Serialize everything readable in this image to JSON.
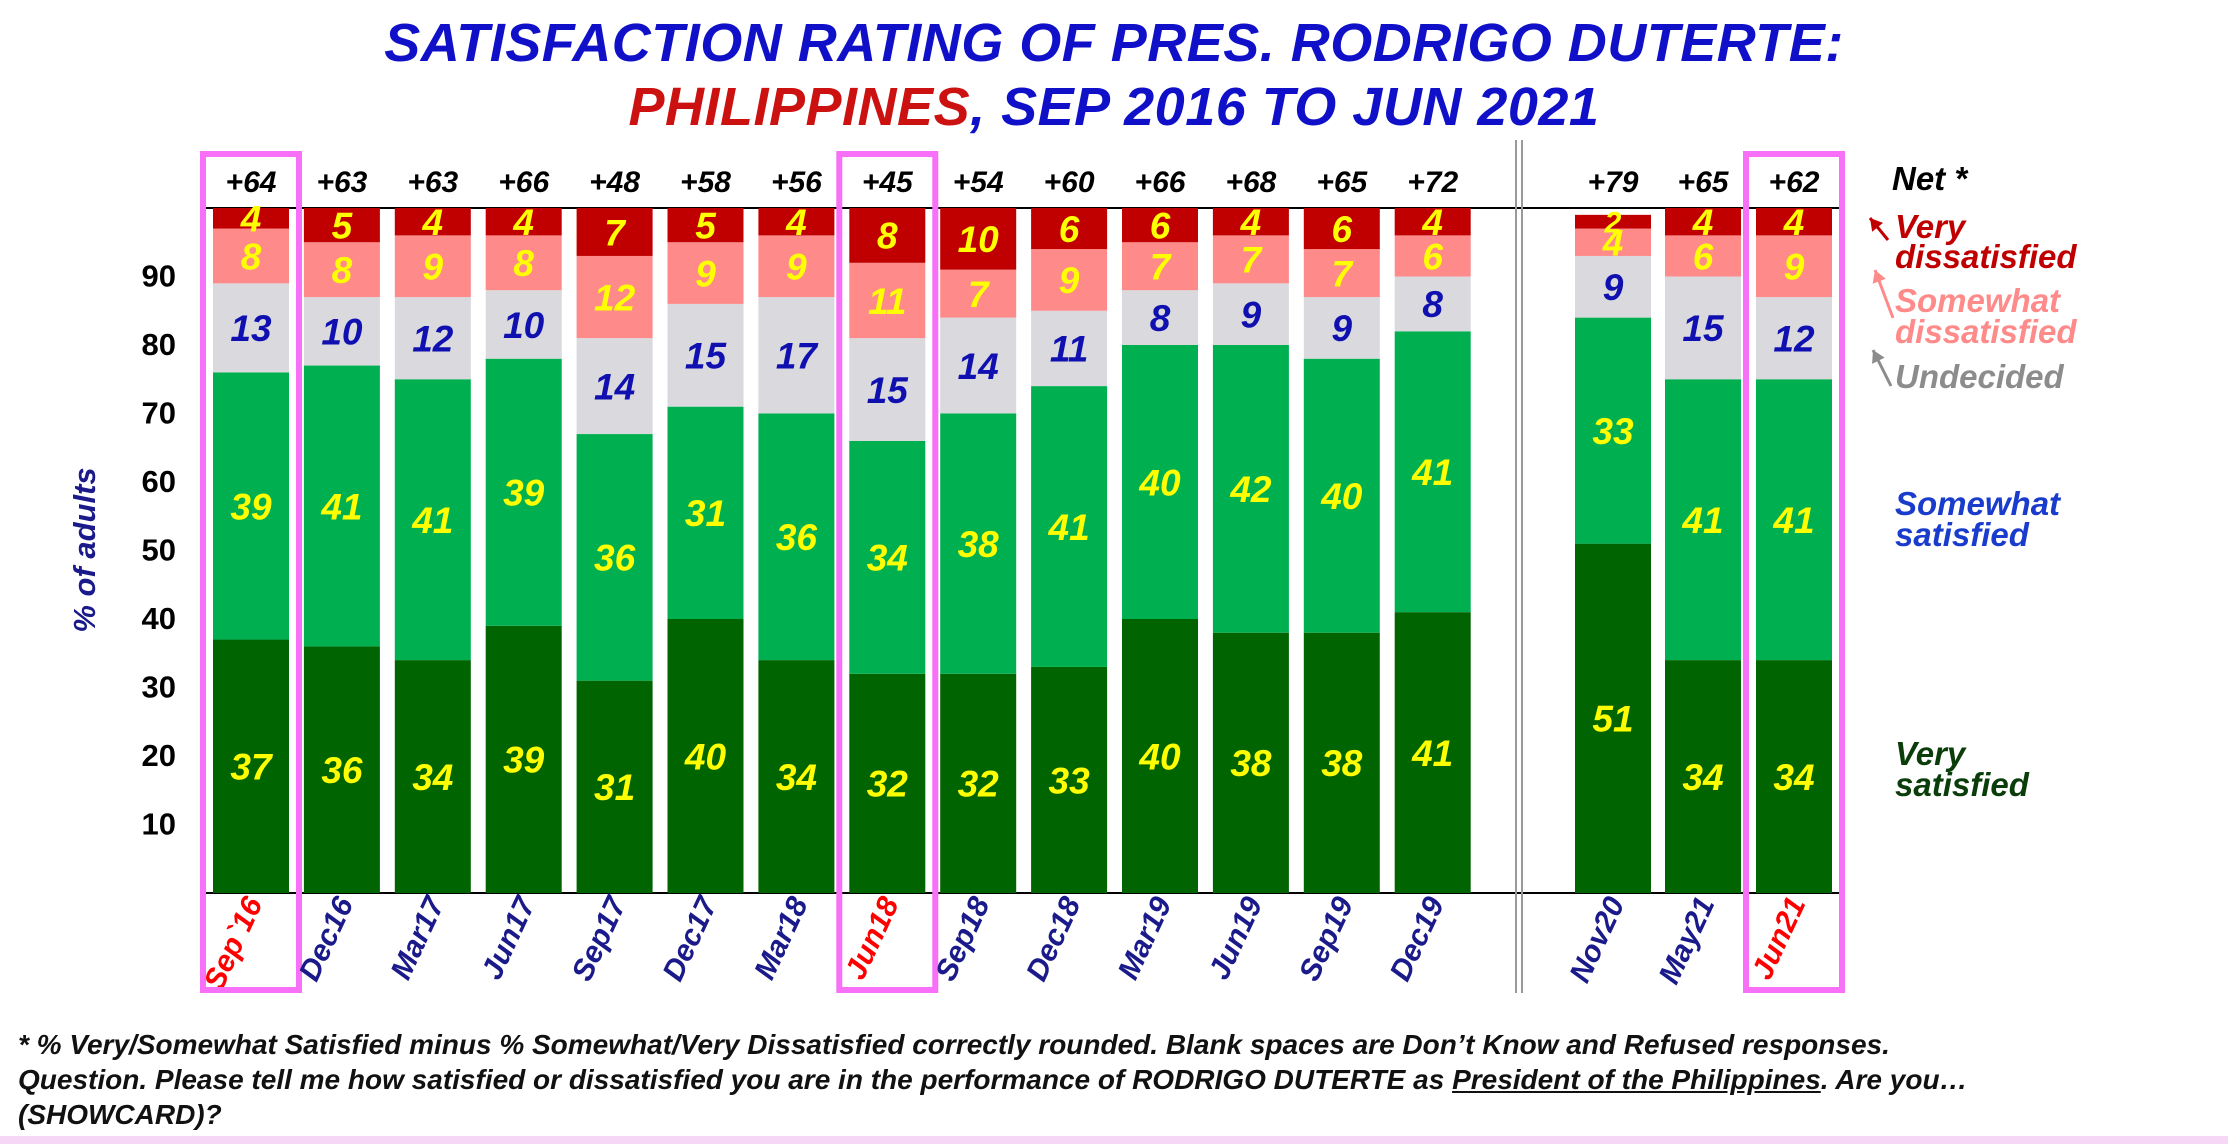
{
  "title": {
    "line1": "SATISFACTION RATING OF PRES. RODRIGO DUTERTE:",
    "line2_country": "PHILIPPINES",
    "line2_rest": ", SEP 2016 TO JUN 2021"
  },
  "chart_data": {
    "type": "bar",
    "stacked": true,
    "ylabel": "% of adults",
    "ylim": [
      0,
      100
    ],
    "yticks": [
      10,
      20,
      30,
      40,
      50,
      60,
      70,
      80,
      90
    ],
    "categories": [
      "Sep`16",
      "Dec16",
      "Mar17",
      "Jun17",
      "Sep17",
      "Dec17",
      "Mar18",
      "Jun18",
      "Sep18",
      "Dec18",
      "Mar19",
      "Jun19",
      "Sep19",
      "Dec19",
      "Nov20",
      "May21",
      "Jun21"
    ],
    "highlighted_categories": [
      "Sep`16",
      "Jun18",
      "Jun21"
    ],
    "net_label": "Net *",
    "net": [
      "+64",
      "+63",
      "+63",
      "+66",
      "+48",
      "+58",
      "+56",
      "+45",
      "+54",
      "+60",
      "+66",
      "+68",
      "+65",
      "+72",
      "+79",
      "+65",
      "+62"
    ],
    "series": [
      {
        "name": "Very satisfied",
        "color": "#006400",
        "values": [
          37,
          36,
          34,
          39,
          31,
          40,
          34,
          32,
          32,
          33,
          40,
          38,
          38,
          41,
          51,
          34,
          34
        ]
      },
      {
        "name": "Somewhat satisfied",
        "color": "#00b050",
        "values": [
          39,
          41,
          41,
          39,
          36,
          31,
          36,
          34,
          38,
          41,
          40,
          42,
          40,
          41,
          33,
          41,
          41
        ]
      },
      {
        "name": "Undecided",
        "color": "#d9d9de",
        "values": [
          13,
          10,
          12,
          10,
          14,
          15,
          17,
          15,
          14,
          11,
          8,
          9,
          9,
          8,
          9,
          15,
          12
        ]
      },
      {
        "name": "Somewhat dissatisfied",
        "color": "#ff8a8a",
        "values": [
          8,
          8,
          9,
          8,
          12,
          9,
          9,
          11,
          7,
          9,
          7,
          7,
          7,
          6,
          4,
          6,
          9
        ]
      },
      {
        "name": "Very dissatisfied",
        "color": "#c00000",
        "values": [
          4,
          5,
          4,
          4,
          7,
          5,
          4,
          8,
          10,
          6,
          6,
          4,
          6,
          4,
          2,
          4,
          4
        ]
      }
    ],
    "legend": [
      {
        "line1": "Very",
        "line2": "dissatisfied",
        "color": "#c00000"
      },
      {
        "line1": "Somewhat",
        "line2": "dissatisfied",
        "color": "#ff8a8a"
      },
      {
        "line1": "Undecided",
        "line2": "",
        "color": "#8c8c8c"
      },
      {
        "line1": "Somewhat",
        "line2": "satisfied",
        "color": "#1a3ccc"
      },
      {
        "line1": "Very",
        "line2": "satisfied",
        "color": "#0b3d0b"
      }
    ],
    "colors": {
      "value_label": "#ffff00",
      "undecided_label": "#1010b0",
      "category_label": "#1a1a8a",
      "highlight_category_label": "#ff0000",
      "highlight_box": "#f870f8"
    }
  },
  "footnotes": {
    "line1": "* % Very/Somewhat Satisfied minus % Somewhat/Very Dissatisfied correctly rounded. Blank spaces are Don’t Know and Refused responses.",
    "line2_before": "Question. Please tell me how satisfied or dissatisfied you are in the performance of RODRIGO DUTERTE as ",
    "line2_underlined": "President of the Philippines",
    "line2_after": ".  Are you…",
    "line3": "(SHOWCARD)?"
  }
}
